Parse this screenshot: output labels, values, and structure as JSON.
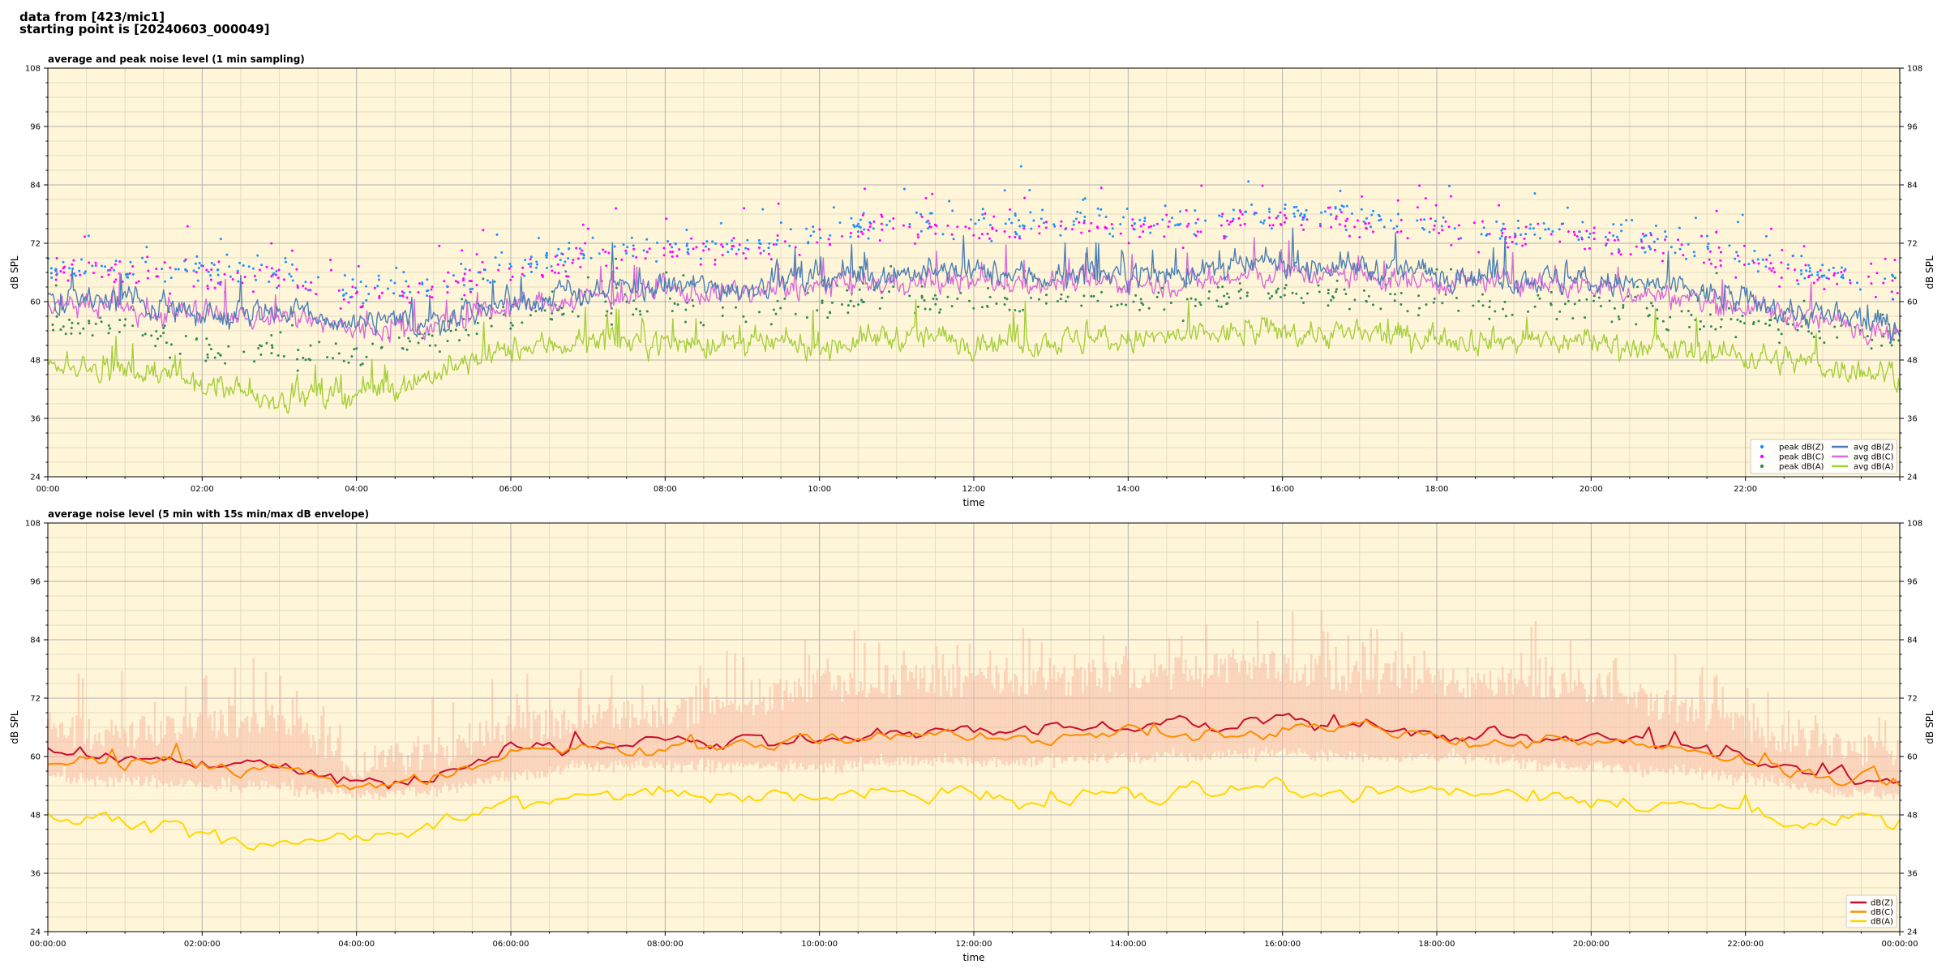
{
  "header": {
    "line1": "data from [423/mic1]",
    "line2": "starting point is [20240603_000049]"
  },
  "colors": {
    "background": "#fff6d9",
    "grid_major": "#b0b0b0",
    "grid_minor": "#e4dcc0",
    "z": "#4c7fb5",
    "c": "#d96ad9",
    "a": "#a6cf3c",
    "z_bottom": "#c8102e",
    "c_bottom": "#ff8c00",
    "a_bottom": "#ffd700",
    "envelope": "#f5b7a0",
    "peak_z": "#1e90ff",
    "peak_c": "#ff00ff",
    "peak_a": "#2e8b57"
  },
  "chart_data": [
    {
      "type": "line",
      "title": "average and peak noise level (1 min sampling)",
      "xlabel": "time",
      "ylabel": "dB SPL",
      "xlim_hours": [
        0,
        24
      ],
      "ylim": [
        24,
        108
      ],
      "yticks": [
        24,
        36,
        48,
        60,
        72,
        84,
        96,
        108
      ],
      "xtick_labels": [
        "00:00",
        "02:00",
        "04:00",
        "06:00",
        "08:00",
        "10:00",
        "12:00",
        "14:00",
        "16:00",
        "18:00",
        "20:00",
        "22:00"
      ],
      "grid": true,
      "legend_position": "lower-right",
      "legend_columns": 2,
      "legend": [
        "peak dB(Z)",
        "peak dB(C)",
        "peak dB(A)",
        "avg dB(Z)",
        "avg dB(C)",
        "avg dB(A)"
      ],
      "series": [
        {
          "name": "avg dB(Z)",
          "kind": "line",
          "hours": [
            0,
            1,
            2,
            3,
            4,
            5,
            6,
            7,
            8,
            9,
            10,
            11,
            12,
            13,
            14,
            15,
            16,
            17,
            18,
            19,
            20,
            21,
            22,
            23,
            24
          ],
          "values": [
            61,
            60,
            58,
            58,
            55,
            56,
            60,
            62,
            63,
            63,
            65,
            66,
            66,
            65,
            66,
            66,
            68,
            67,
            66,
            65,
            64,
            63,
            60,
            57,
            55
          ]
        },
        {
          "name": "avg dB(C)",
          "kind": "line",
          "hours": [
            0,
            1,
            2,
            3,
            4,
            5,
            6,
            7,
            8,
            9,
            10,
            11,
            12,
            13,
            14,
            15,
            16,
            17,
            18,
            19,
            20,
            21,
            22,
            23,
            24
          ],
          "values": [
            60,
            59,
            57,
            57,
            54,
            55,
            59,
            61,
            62,
            62,
            63,
            64,
            64,
            64,
            64,
            64,
            66,
            65,
            64,
            64,
            63,
            61,
            59,
            56,
            54
          ]
        },
        {
          "name": "avg dB(A)",
          "kind": "line",
          "hours": [
            0,
            1,
            2,
            3,
            4,
            5,
            6,
            7,
            8,
            9,
            10,
            11,
            12,
            13,
            14,
            15,
            16,
            17,
            18,
            19,
            20,
            21,
            22,
            23,
            24
          ],
          "values": [
            47,
            46,
            43,
            40,
            41,
            45,
            50,
            52,
            52,
            51,
            51,
            53,
            52,
            52,
            52,
            53,
            54,
            53,
            53,
            52,
            52,
            50,
            49,
            47,
            45
          ]
        },
        {
          "name": "peak dB(Z)",
          "kind": "scatter",
          "hours": [
            0,
            1,
            2,
            3,
            4,
            5,
            6,
            7,
            8,
            9,
            10,
            11,
            12,
            13,
            14,
            15,
            16,
            17,
            18,
            19,
            20,
            21,
            22,
            23,
            24
          ],
          "values": [
            68,
            67,
            66,
            66,
            62,
            63,
            68,
            70,
            71,
            72,
            74,
            76,
            76,
            76,
            76,
            77,
            78,
            77,
            76,
            75,
            74,
            72,
            69,
            66,
            64
          ]
        },
        {
          "name": "peak dB(C)",
          "kind": "scatter",
          "hours": [
            0,
            1,
            2,
            3,
            4,
            5,
            6,
            7,
            8,
            9,
            10,
            11,
            12,
            13,
            14,
            15,
            16,
            17,
            18,
            19,
            20,
            21,
            22,
            23,
            24
          ],
          "values": [
            67,
            66,
            65,
            65,
            61,
            62,
            67,
            69,
            70,
            71,
            73,
            75,
            75,
            75,
            75,
            76,
            77,
            76,
            75,
            74,
            73,
            71,
            68,
            65,
            63
          ]
        },
        {
          "name": "peak dB(A)",
          "kind": "scatter",
          "hours": [
            0,
            1,
            2,
            3,
            4,
            5,
            6,
            7,
            8,
            9,
            10,
            11,
            12,
            13,
            14,
            15,
            16,
            17,
            18,
            19,
            20,
            21,
            22,
            23,
            24
          ],
          "values": [
            55,
            54,
            51,
            49,
            49,
            52,
            57,
            59,
            59,
            58,
            59,
            61,
            60,
            60,
            60,
            61,
            62,
            61,
            60,
            59,
            59,
            57,
            56,
            54,
            52
          ]
        }
      ]
    },
    {
      "type": "line",
      "title": "average noise level (5 min with 15s min/max dB envelope)",
      "xlabel": "time",
      "ylabel": "dB SPL",
      "xlim_hours": [
        0,
        24
      ],
      "ylim": [
        24,
        108
      ],
      "yticks": [
        24,
        36,
        48,
        60,
        72,
        84,
        96,
        108
      ],
      "xtick_labels": [
        "00:00:00",
        "02:00:00",
        "04:00:00",
        "06:00:00",
        "08:00:00",
        "10:00:00",
        "12:00:00",
        "14:00:00",
        "16:00:00",
        "18:00:00",
        "20:00:00",
        "22:00:00",
        "00:00:00"
      ],
      "grid": true,
      "legend_position": "lower-right",
      "legend_columns": 1,
      "legend": [
        "dB(Z)",
        "dB(C)",
        "dB(A)"
      ],
      "series": [
        {
          "name": "dB(Z)",
          "kind": "line",
          "hours": [
            0,
            1,
            2,
            3,
            4,
            5,
            6,
            7,
            8,
            9,
            10,
            11,
            12,
            13,
            14,
            15,
            16,
            17,
            18,
            19,
            20,
            21,
            22,
            23,
            24
          ],
          "values": [
            61,
            60,
            59,
            58,
            55,
            57,
            61,
            63,
            63,
            63,
            64,
            65,
            65,
            65,
            66,
            66,
            68,
            66,
            65,
            64,
            64,
            62,
            60,
            57,
            55
          ]
        },
        {
          "name": "dB(C)",
          "kind": "line",
          "hours": [
            0,
            1,
            2,
            3,
            4,
            5,
            6,
            7,
            8,
            9,
            10,
            11,
            12,
            13,
            14,
            15,
            16,
            17,
            18,
            19,
            20,
            21,
            22,
            23,
            24
          ],
          "values": [
            59,
            59,
            58,
            57,
            54,
            56,
            60,
            62,
            62,
            62,
            63,
            64,
            64,
            64,
            65,
            65,
            66,
            65,
            64,
            63,
            63,
            61,
            59,
            56,
            54
          ]
        },
        {
          "name": "dB(A)",
          "kind": "line",
          "hours": [
            0,
            1,
            2,
            3,
            4,
            5,
            6,
            7,
            8,
            9,
            10,
            11,
            12,
            13,
            14,
            15,
            16,
            17,
            18,
            19,
            20,
            21,
            22,
            23,
            24
          ],
          "values": [
            47,
            47,
            45,
            42,
            42,
            46,
            50,
            52,
            52,
            51,
            51,
            53,
            52,
            52,
            52,
            53,
            54,
            53,
            53,
            52,
            52,
            50,
            49,
            47,
            46
          ]
        },
        {
          "name": "envelope max",
          "kind": "band-upper",
          "hours": [
            0,
            1,
            2,
            3,
            4,
            5,
            6,
            7,
            8,
            9,
            10,
            11,
            12,
            13,
            14,
            15,
            16,
            17,
            18,
            19,
            20,
            21,
            22,
            23,
            24
          ],
          "values": [
            69,
            68,
            70,
            72,
            62,
            64,
            69,
            71,
            72,
            74,
            78,
            79,
            79,
            79,
            80,
            81,
            82,
            80,
            79,
            79,
            78,
            74,
            69,
            66,
            64
          ]
        },
        {
          "name": "envelope min",
          "kind": "band-lower",
          "hours": [
            0,
            1,
            2,
            3,
            4,
            5,
            6,
            7,
            8,
            9,
            10,
            11,
            12,
            13,
            14,
            15,
            16,
            17,
            18,
            19,
            20,
            21,
            22,
            23,
            24
          ],
          "values": [
            56,
            55,
            54,
            54,
            52,
            53,
            56,
            58,
            58,
            58,
            58,
            59,
            59,
            59,
            60,
            60,
            61,
            60,
            60,
            59,
            58,
            57,
            56,
            53,
            52
          ]
        }
      ]
    }
  ]
}
